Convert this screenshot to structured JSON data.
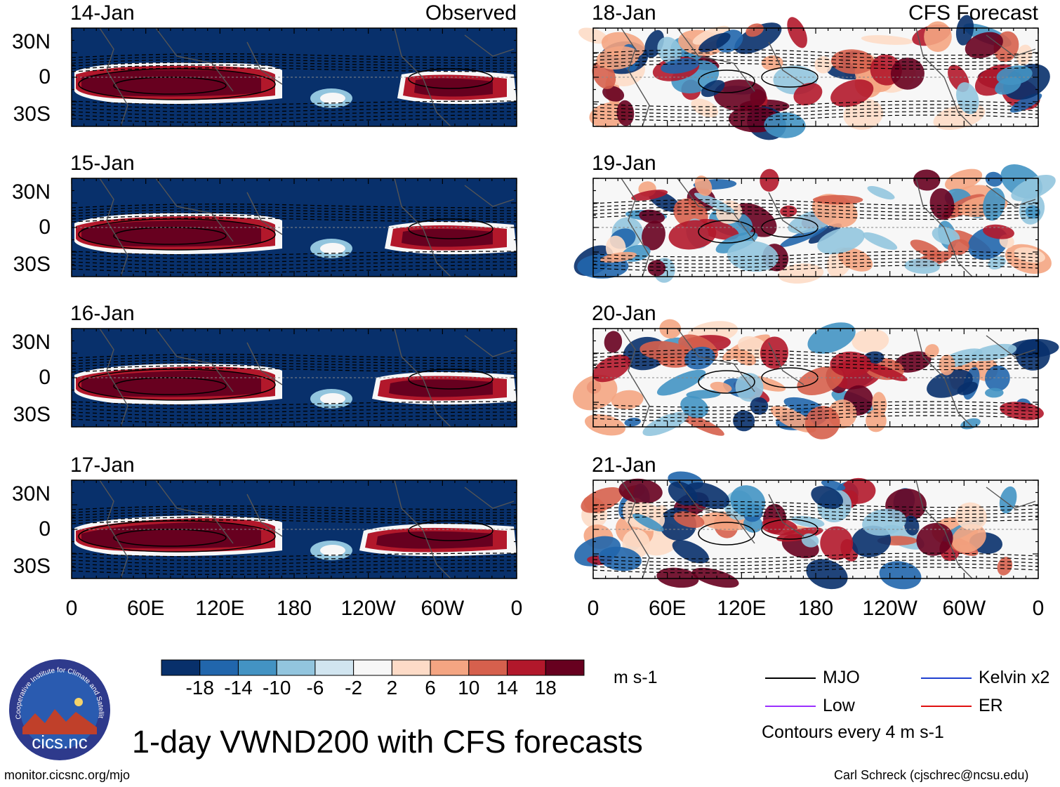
{
  "title": "1-day VWND200 with CFS forecasts",
  "website": "monitor.cicsnc.org/mjo",
  "credit": "Carl Schreck (cjschrec@ncsu.edu)",
  "logo": {
    "ring_text": "Cooperative Institute for Climate and Satellites",
    "main_text": "cics.nc",
    "colors": {
      "outer": "#2e3a8c",
      "inner": "#2a5bb0",
      "mountain": "#c0402a",
      "sun": "#f5d36a"
    }
  },
  "panels": {
    "observed": [
      {
        "date": "14-Jan",
        "source": "Observed"
      },
      {
        "date": "15-Jan"
      },
      {
        "date": "16-Jan"
      },
      {
        "date": "17-Jan"
      }
    ],
    "forecast": [
      {
        "date": "18-Jan",
        "source": "CFS Forecast"
      },
      {
        "date": "19-Jan"
      },
      {
        "date": "20-Jan"
      },
      {
        "date": "21-Jan"
      }
    ]
  },
  "lat_labels": [
    "30N",
    "0",
    "30S"
  ],
  "lon_labels": [
    "0",
    "60E",
    "120E",
    "180",
    "120W",
    "60W",
    "0"
  ],
  "colorbar": {
    "units": "m s-1",
    "tick_labels": [
      "-18",
      "-14",
      "-10",
      "-6",
      "-2",
      "2",
      "6",
      "10",
      "14",
      "18"
    ],
    "colors": [
      "#08306b",
      "#2166ac",
      "#4393c3",
      "#92c5de",
      "#d1e5f0",
      "#f7f7f7",
      "#fddbc7",
      "#f4a582",
      "#d6604d",
      "#b2182b",
      "#67001f"
    ]
  },
  "legend": {
    "items": [
      {
        "label": "MJO",
        "color": "#000000"
      },
      {
        "label": "Kelvin x2",
        "color": "#1f3fd0"
      },
      {
        "label": "Low",
        "color": "#9b30ff"
      },
      {
        "label": "ER",
        "color": "#e01010"
      }
    ],
    "note": "Contours every 4 m s-1"
  }
}
